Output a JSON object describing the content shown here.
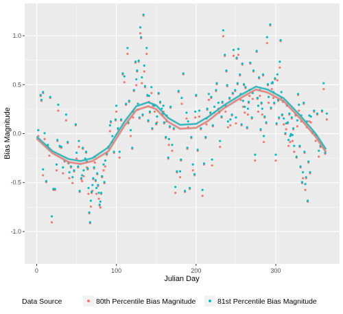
{
  "colors": {
    "panel_bg": "#ebebeb",
    "grid_major": "#ffffff",
    "series_80": "#f8766d",
    "series_81": "#00bfc4",
    "smooth_band": "#999999"
  },
  "chart_data": {
    "type": "scatter",
    "xlabel": "Julian Day",
    "ylabel": "Bias Magnitude",
    "xlim": [
      -15,
      380
    ],
    "ylim": [
      -1.33,
      1.33
    ],
    "x_ticks": [
      0,
      100,
      200,
      300
    ],
    "y_ticks": [
      -1.0,
      -0.5,
      0.0,
      0.5,
      1.0
    ],
    "y_tick_labels": [
      "-1.0",
      "-0.5",
      "0.0",
      "0.5",
      "1.0"
    ],
    "grid": true,
    "legend": {
      "position": "bottom",
      "title": "Data Source"
    },
    "series": [
      {
        "name": "80th Percentile Bias Magnitude",
        "color": "#f8766d",
        "offset": -0.015
      },
      {
        "name": "81st Percentile Bias Magnitude",
        "color": "#00bfc4",
        "offset": 0.015
      }
    ],
    "trend_80": [
      [
        0,
        -0.05
      ],
      [
        20,
        -0.2
      ],
      [
        40,
        -0.29
      ],
      [
        55,
        -0.31
      ],
      [
        70,
        -0.28
      ],
      [
        90,
        -0.18
      ],
      [
        110,
        0.08
      ],
      [
        125,
        0.24
      ],
      [
        140,
        0.28
      ],
      [
        150,
        0.25
      ],
      [
        165,
        0.12
      ],
      [
        180,
        0.05
      ],
      [
        200,
        0.06
      ],
      [
        215,
        0.13
      ],
      [
        235,
        0.26
      ],
      [
        255,
        0.36
      ],
      [
        275,
        0.45
      ],
      [
        290,
        0.42
      ],
      [
        310,
        0.33
      ],
      [
        330,
        0.16
      ],
      [
        350,
        -0.03
      ],
      [
        363,
        -0.19
      ]
    ],
    "trend_81": [
      [
        0,
        -0.03
      ],
      [
        20,
        -0.18
      ],
      [
        40,
        -0.26
      ],
      [
        55,
        -0.28
      ],
      [
        70,
        -0.25
      ],
      [
        90,
        -0.14
      ],
      [
        110,
        0.12
      ],
      [
        125,
        0.28
      ],
      [
        140,
        0.32
      ],
      [
        150,
        0.29
      ],
      [
        165,
        0.16
      ],
      [
        180,
        0.09
      ],
      [
        200,
        0.1
      ],
      [
        215,
        0.17
      ],
      [
        235,
        0.29
      ],
      [
        255,
        0.39
      ],
      [
        275,
        0.48
      ],
      [
        290,
        0.45
      ],
      [
        310,
        0.36
      ],
      [
        330,
        0.19
      ],
      [
        350,
        0.0
      ],
      [
        363,
        -0.16
      ]
    ],
    "points": [
      [
        2,
        0.01
      ],
      [
        5,
        0.4
      ],
      [
        6,
        0.33
      ],
      [
        8,
        -0.4
      ],
      [
        8,
        0.42
      ],
      [
        10,
        -0.02
      ],
      [
        12,
        -0.48
      ],
      [
        14,
        -0.13
      ],
      [
        16,
        -0.2
      ],
      [
        17,
        0.37
      ],
      [
        19,
        -0.87
      ],
      [
        21,
        -0.56
      ],
      [
        23,
        -0.58
      ],
      [
        25,
        -0.35
      ],
      [
        26,
        -0.07
      ],
      [
        27,
        0.27
      ],
      [
        29,
        -0.12
      ],
      [
        31,
        -0.15
      ],
      [
        33,
        -0.38
      ],
      [
        35,
        -0.28
      ],
      [
        37,
        0.17
      ],
      [
        39,
        -0.08
      ],
      [
        40,
        -0.31
      ],
      [
        41,
        -0.43
      ],
      [
        43,
        -0.34
      ],
      [
        45,
        -0.47
      ],
      [
        47,
        -0.37
      ],
      [
        49,
        0.08
      ],
      [
        50,
        -0.23
      ],
      [
        52,
        -0.34
      ],
      [
        53,
        -0.1
      ],
      [
        54,
        -0.58
      ],
      [
        56,
        -0.47
      ],
      [
        57,
        -0.46
      ],
      [
        58,
        -0.15
      ],
      [
        59,
        -0.4
      ],
      [
        61,
        -0.25
      ],
      [
        62,
        -0.2
      ],
      [
        63,
        -0.32
      ],
      [
        64,
        -0.36
      ],
      [
        65,
        -0.58
      ],
      [
        66,
        -0.8
      ],
      [
        67,
        -0.92
      ],
      [
        68,
        -0.72
      ],
      [
        69,
        -0.6
      ],
      [
        70,
        -0.55
      ],
      [
        71,
        -0.45
      ],
      [
        72,
        -0.36
      ],
      [
        73,
        -0.27
      ],
      [
        74,
        -0.48
      ],
      [
        75,
        -0.58
      ],
      [
        76,
        -0.4
      ],
      [
        77,
        -0.54
      ],
      [
        78,
        -0.64
      ],
      [
        79,
        -0.73
      ],
      [
        80,
        -0.72
      ],
      [
        81,
        -0.6
      ],
      [
        82,
        -0.45
      ],
      [
        84,
        -0.35
      ],
      [
        85,
        -0.5
      ],
      [
        86,
        -0.3
      ],
      [
        88,
        -0.2
      ],
      [
        90,
        -0.15
      ],
      [
        92,
        0.05
      ],
      [
        93,
        0.12
      ],
      [
        95,
        -0.05
      ],
      [
        97,
        -0.18
      ],
      [
        99,
        0.13
      ],
      [
        100,
        0.25
      ],
      [
        102,
        0.05
      ],
      [
        104,
        -0.21
      ],
      [
        106,
        0.15
      ],
      [
        108,
        0.6
      ],
      [
        110,
        0.55
      ],
      [
        112,
        0.3
      ],
      [
        114,
        0.85
      ],
      [
        115,
        0.12
      ],
      [
        116,
        0.32
      ],
      [
        118,
        0.0
      ],
      [
        120,
        -0.15
      ],
      [
        121,
        0.2
      ],
      [
        122,
        0.45
      ],
      [
        124,
        0.72
      ],
      [
        125,
        0.52
      ],
      [
        126,
        0.64
      ],
      [
        127,
        0.28
      ],
      [
        128,
        0.75
      ],
      [
        129,
        0.15
      ],
      [
        130,
        1.05
      ],
      [
        131,
        0.98
      ],
      [
        132,
        0.55
      ],
      [
        133,
        0.2
      ],
      [
        134,
        1.2
      ],
      [
        135,
        0.66
      ],
      [
        136,
        0.48
      ],
      [
        138,
        0.85
      ],
      [
        139,
        0.4
      ],
      [
        140,
        0.12
      ],
      [
        141,
        0.35
      ],
      [
        142,
        0.22
      ],
      [
        144,
        0.45
      ],
      [
        145,
        0.06
      ],
      [
        146,
        0.28
      ],
      [
        148,
        0.25
      ],
      [
        150,
        0.1
      ],
      [
        151,
        0.15
      ],
      [
        153,
        0.42
      ],
      [
        155,
        0.31
      ],
      [
        157,
        0.22
      ],
      [
        158,
        0.2
      ],
      [
        159,
        0.26
      ],
      [
        160,
        0.12
      ],
      [
        162,
        -0.05
      ],
      [
        163,
        0.15
      ],
      [
        165,
        -0.25
      ],
      [
        166,
        -0.08
      ],
      [
        167,
        0.08
      ],
      [
        168,
        0.26
      ],
      [
        170,
        -0.15
      ],
      [
        172,
        0.05
      ],
      [
        174,
        -0.57
      ],
      [
        176,
        -0.38
      ],
      [
        178,
        0.42
      ],
      [
        180,
        -0.42
      ],
      [
        181,
        -0.27
      ],
      [
        182,
        0.34
      ],
      [
        184,
        0.62
      ],
      [
        186,
        -0.6
      ],
      [
        188,
        0.18
      ],
      [
        189,
        -0.15
      ],
      [
        190,
        0.1
      ],
      [
        192,
        -0.55
      ],
      [
        194,
        -0.05
      ],
      [
        196,
        -0.35
      ],
      [
        198,
        -0.42
      ],
      [
        199,
        0.2
      ],
      [
        200,
        0.4
      ],
      [
        202,
        -0.18
      ],
      [
        204,
        0.2
      ],
      [
        206,
        0.05
      ],
      [
        208,
        -0.6
      ],
      [
        210,
        -0.3
      ],
      [
        212,
        -0.05
      ],
      [
        213,
        0.12
      ],
      [
        214,
        0.25
      ],
      [
        216,
        0.38
      ],
      [
        218,
        0.22
      ],
      [
        219,
        0.36
      ],
      [
        220,
        -0.3
      ],
      [
        221,
        0.08
      ],
      [
        223,
        0.25
      ],
      [
        225,
        0.45
      ],
      [
        226,
        0.5
      ],
      [
        228,
        0.28
      ],
      [
        229,
        0.22
      ],
      [
        230,
        -0.1
      ],
      [
        232,
        0.18
      ],
      [
        233,
        0.31
      ],
      [
        234,
        1.02
      ],
      [
        236,
        0.8
      ],
      [
        237,
        0.26
      ],
      [
        238,
        0.65
      ],
      [
        239,
        0.48
      ],
      [
        240,
        0.09
      ],
      [
        242,
        0.36
      ],
      [
        243,
        0.12
      ],
      [
        245,
        0.2
      ],
      [
        246,
        0.4
      ],
      [
        247,
        0.82
      ],
      [
        249,
        0.44
      ],
      [
        250,
        0.14
      ],
      [
        251,
        0.78
      ],
      [
        252,
        0.5
      ],
      [
        253,
        0.83
      ],
      [
        255,
        0.6
      ],
      [
        256,
        0.38
      ],
      [
        257,
        0.1
      ],
      [
        258,
        0.7
      ],
      [
        259,
        0.3
      ],
      [
        260,
        0.5
      ],
      [
        261,
        0.25
      ],
      [
        262,
        0.48
      ],
      [
        264,
        0.05
      ],
      [
        265,
        0.22
      ],
      [
        266,
        0.32
      ],
      [
        267,
        0.42
      ],
      [
        268,
        0.73
      ],
      [
        270,
        0.15
      ],
      [
        271,
        0.38
      ],
      [
        272,
        0.64
      ],
      [
        274,
        -0.24
      ],
      [
        276,
        0.85
      ],
      [
        277,
        0.35
      ],
      [
        278,
        0.25
      ],
      [
        279,
        0.57
      ],
      [
        280,
        0.42
      ],
      [
        281,
        0.05
      ],
      [
        282,
        0.3
      ],
      [
        283,
        0.22
      ],
      [
        284,
        0.6
      ],
      [
        285,
        -0.05
      ],
      [
        286,
        0.18
      ],
      [
        288,
        0.1
      ],
      [
        289,
        0.95
      ],
      [
        290,
        0.5
      ],
      [
        291,
        0.35
      ],
      [
        293,
        1.12
      ],
      [
        294,
        0.25
      ],
      [
        295,
        0.48
      ],
      [
        296,
        0.52
      ],
      [
        297,
        0.4
      ],
      [
        298,
        0.32
      ],
      [
        299,
        0.55
      ],
      [
        300,
        -0.25
      ],
      [
        301,
        0.1
      ],
      [
        302,
        0.58
      ],
      [
        303,
        0.35
      ],
      [
        304,
        0.15
      ],
      [
        305,
        0.7
      ],
      [
        306,
        0.95
      ],
      [
        307,
        0.4
      ],
      [
        308,
        0.2
      ],
      [
        309,
        0.32
      ],
      [
        310,
        0.12
      ],
      [
        312,
        0.0
      ],
      [
        313,
        0.08
      ],
      [
        314,
        0.3
      ],
      [
        315,
        0.1
      ],
      [
        316,
        -0.1
      ],
      [
        317,
        0.2
      ],
      [
        318,
        -0.05
      ],
      [
        319,
        0.0
      ],
      [
        320,
        0.15
      ],
      [
        321,
        -0.05
      ],
      [
        322,
        0.05
      ],
      [
        323,
        -0.15
      ],
      [
        325,
        0.2
      ],
      [
        326,
        -0.25
      ],
      [
        327,
        0.1
      ],
      [
        328,
        0.4
      ],
      [
        329,
        0.27
      ],
      [
        330,
        -0.12
      ],
      [
        331,
        -0.35
      ],
      [
        332,
        0.15
      ],
      [
        333,
        -0.5
      ],
      [
        334,
        -0.42
      ],
      [
        335,
        0.32
      ],
      [
        336,
        -0.2
      ],
      [
        337,
        -0.55
      ],
      [
        338,
        -0.45
      ],
      [
        339,
        0.1
      ],
      [
        340,
        -0.68
      ],
      [
        341,
        -0.3
      ],
      [
        342,
        0.15
      ],
      [
        343,
        -0.4
      ],
      [
        344,
        0.15
      ],
      [
        346,
        0.02
      ],
      [
        348,
        0.22
      ],
      [
        350,
        -0.05
      ],
      [
        352,
        0.2
      ],
      [
        354,
        -0.2
      ],
      [
        356,
        -0.12
      ],
      [
        358,
        0.22
      ],
      [
        360,
        0.48
      ],
      [
        362,
        -0.2
      ],
      [
        364,
        0.18
      ]
    ]
  }
}
